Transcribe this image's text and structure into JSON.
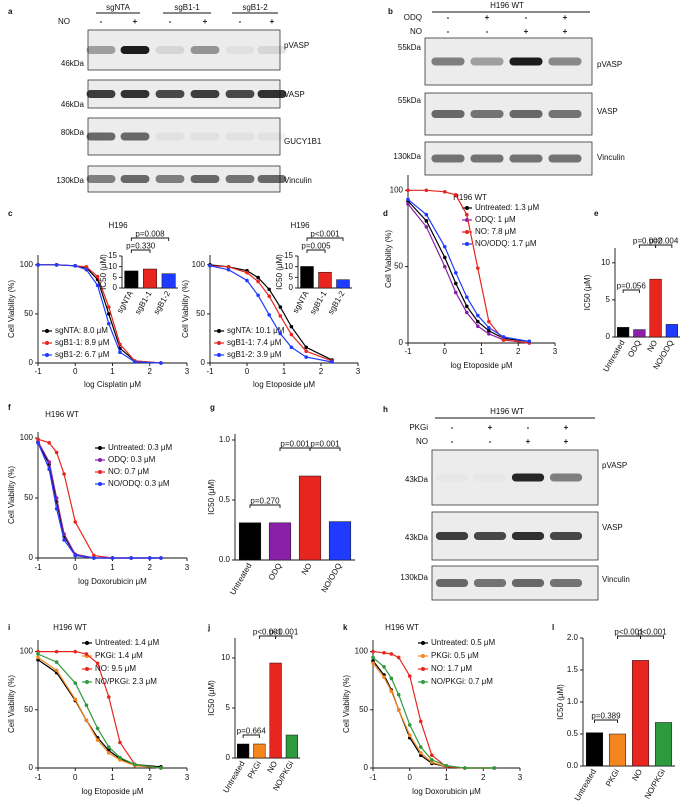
{
  "blots": [
    {
      "label": "a",
      "groups": [
        "sgNTA",
        "sgB1-1",
        "sgB1-2"
      ],
      "treatments": [
        {
          "name": "NO",
          "signs": [
            "-",
            "+",
            "-",
            "+",
            "-",
            "+"
          ]
        }
      ],
      "rows": [
        {
          "name": "pVASP",
          "marker": "46kDa"
        },
        {
          "name": "VASP",
          "marker": "46kDa"
        },
        {
          "name": "GUCY1B1",
          "marker": "80kDa"
        },
        {
          "name": "Vinculin",
          "marker": "130kDa"
        }
      ]
    },
    {
      "label": "b",
      "header": "H196 WT",
      "treatments": [
        {
          "name": "ODQ",
          "signs": [
            "-",
            "+",
            "-",
            "+"
          ]
        },
        {
          "name": "NO",
          "signs": [
            "-",
            "-",
            "+",
            "+"
          ]
        }
      ],
      "rows": [
        {
          "name": "pVASP",
          "marker": "55kDa"
        },
        {
          "name": "VASP",
          "marker": "55kDa"
        },
        {
          "name": "Vinculin",
          "marker": "130kDa"
        }
      ]
    },
    {
      "label": "h",
      "header": "H196 WT",
      "treatments": [
        {
          "name": "PKGi",
          "signs": [
            "-",
            "+",
            "-",
            "+"
          ]
        },
        {
          "name": "NO",
          "signs": [
            "-",
            "-",
            "+",
            "+"
          ]
        }
      ],
      "rows": [
        {
          "name": "pVASP",
          "marker": "43kDa"
        },
        {
          "name": "VASP",
          "marker": "43kDa"
        },
        {
          "name": "Vinculin",
          "marker": "130kDa"
        }
      ]
    }
  ],
  "chart_data": [
    {
      "type": "line",
      "label": "c",
      "title": "H196",
      "xlabel": "log Cisplatin μM",
      "ylabel": "Cell Viability (%)",
      "xlim": [
        -1,
        3
      ],
      "xticks": [
        -1,
        0,
        1,
        2,
        3
      ],
      "ylim": [
        0,
        110
      ],
      "yticks": [
        0,
        50,
        100
      ],
      "series": [
        {
          "name": "sgNTA: 8.0 μM",
          "color": "#000000",
          "x": [
            -1,
            -0.5,
            0,
            0.3,
            0.6,
            0.9,
            1.2,
            1.6,
            2.3
          ],
          "values": [
            100,
            100,
            99,
            97,
            85,
            50,
            15,
            2,
            0
          ]
        },
        {
          "name": "sgB1-1: 8.9 μM",
          "color": "#e8251f",
          "x": [
            -1,
            -0.5,
            0,
            0.3,
            0.6,
            0.9,
            1.2,
            1.6,
            2.3
          ],
          "values": [
            100,
            100,
            99,
            98,
            88,
            57,
            19,
            2,
            0
          ]
        },
        {
          "name": "sgB1-2: 6.7 μM",
          "color": "#1f3bff",
          "x": [
            -1,
            -0.5,
            0,
            0.3,
            0.6,
            0.9,
            1.2,
            1.6,
            2.3
          ],
          "values": [
            100,
            100,
            99,
            95,
            79,
            40,
            11,
            1,
            0
          ]
        }
      ]
    },
    {
      "type": "bar",
      "ylabel": "IC50 (μM)",
      "categories": [
        "sgNTA",
        "sgB1-1",
        "sgB1-2"
      ],
      "values": [
        8.0,
        8.9,
        6.7
      ],
      "colors": [
        "#000000",
        "#e8251f",
        "#1f3bff"
      ],
      "ylim": [
        0,
        15
      ],
      "yticks": [
        0,
        5,
        10,
        15
      ],
      "annotations": [
        "p=0.330",
        "p=0.008"
      ]
    },
    {
      "type": "line",
      "title": "H196",
      "xlabel": "log Etoposide μM",
      "ylabel": "Cell Viability (%)",
      "xlim": [
        -1,
        3
      ],
      "xticks": [
        -1,
        0,
        1,
        2,
        3
      ],
      "ylim": [
        0,
        110
      ],
      "yticks": [
        0,
        50,
        100
      ],
      "series": [
        {
          "name": "sgNTA: 10.1 μM",
          "color": "#000000",
          "x": [
            -1,
            -0.5,
            0,
            0.3,
            0.6,
            0.9,
            1.2,
            1.6,
            2.3
          ],
          "values": [
            100,
            98,
            94,
            87,
            75,
            57,
            37,
            16,
            3
          ]
        },
        {
          "name": "sgB1-1: 7.4 μM",
          "color": "#e8251f",
          "x": [
            -1,
            -0.5,
            0,
            0.3,
            0.6,
            0.9,
            1.2,
            1.6,
            2.3
          ],
          "values": [
            99,
            98,
            92,
            83,
            68,
            48,
            29,
            12,
            2
          ]
        },
        {
          "name": "sgB1-2: 3.9 μM",
          "color": "#1f3bff",
          "x": [
            -1,
            -0.5,
            0,
            0.3,
            0.6,
            0.9,
            1.2,
            1.6,
            2.3
          ],
          "values": [
            99,
            95,
            84,
            69,
            49,
            30,
            16,
            6,
            1
          ]
        }
      ]
    },
    {
      "type": "bar",
      "ylabel": "IC50 (μM)",
      "categories": [
        "sgNTA",
        "sgB1-1",
        "sgB1-2"
      ],
      "values": [
        10.1,
        7.4,
        3.9
      ],
      "colors": [
        "#000000",
        "#e8251f",
        "#1f3bff"
      ],
      "ylim": [
        0,
        15
      ],
      "yticks": [
        0,
        5,
        10,
        15
      ],
      "annotations": [
        "p=0.005",
        "p<0.001"
      ]
    },
    {
      "type": "line",
      "label": "d",
      "title": "H196 WT",
      "xlabel": "log Etoposide μM",
      "ylabel": "Cell Viability (%)",
      "xlim": [
        -1,
        3
      ],
      "xticks": [
        -1,
        0,
        1,
        2,
        3
      ],
      "ylim": [
        0,
        110
      ],
      "yticks": [
        0,
        50,
        100
      ],
      "series": [
        {
          "name": "Untreated: 1.3 μM",
          "color": "#000000",
          "x": [
            -1,
            -0.5,
            0,
            0.3,
            0.6,
            0.9,
            1.2,
            1.6,
            2.3
          ],
          "values": [
            93,
            80,
            56,
            39,
            24,
            14,
            8,
            3,
            1
          ]
        },
        {
          "name": "ODQ: 1 μM",
          "color": "#8a1fa8",
          "x": [
            -1,
            -0.5,
            0,
            0.3,
            0.6,
            0.9,
            1.2,
            1.6,
            2.3
          ],
          "values": [
            91,
            76,
            50,
            33,
            20,
            11,
            6,
            2,
            0
          ]
        },
        {
          "name": "NO: 7.8 μM",
          "color": "#e8251f",
          "x": [
            -1,
            -0.5,
            0,
            0.3,
            0.6,
            0.9,
            1.2,
            1.6,
            2.3
          ],
          "values": [
            100,
            100,
            99,
            97,
            84,
            49,
            14,
            2,
            0
          ]
        },
        {
          "name": "NO/ODQ: 1.7 μM",
          "color": "#1f3bff",
          "x": [
            -1,
            -0.5,
            0,
            0.3,
            0.6,
            0.9,
            1.2,
            1.6,
            2.3
          ],
          "values": [
            94,
            84,
            63,
            46,
            30,
            18,
            10,
            4,
            1
          ]
        }
      ]
    },
    {
      "type": "bar",
      "label": "e",
      "ylabel": "IC50 (μM)",
      "categories": [
        "Untreated",
        "ODQ",
        "NO",
        "NO/ODQ"
      ],
      "values": [
        1.3,
        1.0,
        7.8,
        1.7
      ],
      "colors": [
        "#000000",
        "#8a1fa8",
        "#e8251f",
        "#1f3bff"
      ],
      "ylim": [
        0,
        12
      ],
      "yticks": [
        0,
        5,
        10
      ],
      "annotations": [
        "p=0.056",
        "p=0.002",
        "p=0.004"
      ]
    },
    {
      "type": "line",
      "label": "f",
      "title": "H196 WT",
      "xlabel": "log Doxorubicin μM",
      "ylabel": "Cell Viability (%)",
      "xlim": [
        -1,
        3
      ],
      "xticks": [
        -1,
        0,
        1,
        2,
        3
      ],
      "ylim": [
        0,
        105
      ],
      "yticks": [
        0,
        50,
        100
      ],
      "series": [
        {
          "name": "Untreated: 0.3 μM",
          "color": "#000000",
          "x": [
            -1,
            -0.7,
            -0.5,
            -0.3,
            0,
            0.5,
            1,
            1.5,
            2,
            2.3
          ],
          "values": [
            96,
            78,
            47,
            18,
            3,
            0,
            0,
            0,
            0,
            0
          ]
        },
        {
          "name": "ODQ: 0.3 μM",
          "color": "#8a1fa8",
          "x": [
            -1,
            -0.7,
            -0.5,
            -0.3,
            0,
            0.5,
            1,
            1.5,
            2,
            2.3
          ],
          "values": [
            97,
            80,
            50,
            20,
            3,
            0,
            0,
            0,
            0,
            0
          ]
        },
        {
          "name": "NO: 0.7 μM",
          "color": "#e8251f",
          "x": [
            -1,
            -0.7,
            -0.5,
            -0.3,
            0,
            0.5,
            1,
            1.5,
            2,
            2.3
          ],
          "values": [
            99,
            96,
            88,
            70,
            30,
            2,
            0,
            0,
            0,
            0
          ]
        },
        {
          "name": "NO/ODQ: 0.3 μM",
          "color": "#1f3bff",
          "x": [
            -1,
            -0.7,
            -0.5,
            -0.3,
            0,
            0.5,
            1,
            1.5,
            2,
            2.3
          ],
          "values": [
            96,
            74,
            41,
            15,
            2,
            0,
            0,
            0,
            0,
            0
          ]
        }
      ]
    },
    {
      "type": "bar",
      "label": "g",
      "ylabel": "IC50 (μM)",
      "categories": [
        "Untreated",
        "ODQ",
        "NO",
        "NO/ODQ"
      ],
      "values": [
        0.31,
        0.31,
        0.7,
        0.32
      ],
      "colors": [
        "#000000",
        "#8a1fa8",
        "#e8251f",
        "#1f3bff"
      ],
      "ylim": [
        0,
        1.05
      ],
      "yticks": [
        {
          "value": 0,
          "label": "0.0"
        },
        0.5,
        {
          "value": 1,
          "label": "1.0"
        }
      ],
      "annotations": [
        "p=0.270",
        "p=0.001",
        "p=0.001"
      ]
    },
    {
      "type": "line",
      "label": "i",
      "title": "H196 WT",
      "xlabel": "log Etoposide μM",
      "ylabel": "Cell Viability (%)",
      "xlim": [
        -1,
        3
      ],
      "xticks": [
        -1,
        0,
        1,
        2,
        3
      ],
      "ylim": [
        0,
        110
      ],
      "yticks": [
        0,
        50,
        100
      ],
      "series": [
        {
          "name": "Untreated: 1.4 μM",
          "color": "#000000",
          "x": [
            -1,
            -0.5,
            0,
            0.3,
            0.6,
            0.9,
            1.2,
            1.6,
            2.3
          ],
          "values": [
            93,
            82,
            58,
            41,
            26,
            15,
            8,
            3,
            1
          ]
        },
        {
          "name": "PKGi: 1.4 μM",
          "color": "#f5861f",
          "x": [
            -1,
            -0.5,
            0,
            0.3,
            0.6,
            0.9,
            1.2,
            1.6,
            2.3
          ],
          "values": [
            95,
            84,
            59,
            41,
            24,
            13,
            7,
            2,
            0
          ]
        },
        {
          "name": "NO: 9.5 μM",
          "color": "#e8251f",
          "x": [
            -1,
            -0.5,
            0,
            0.3,
            0.6,
            0.9,
            1.2,
            1.6,
            2.3
          ],
          "values": [
            100,
            100,
            100,
            98,
            90,
            61,
            22,
            3,
            0
          ]
        },
        {
          "name": "NO/PKGi: 2.3 μM",
          "color": "#2e9a3e",
          "x": [
            -1,
            -0.5,
            0,
            0.3,
            0.6,
            0.9,
            1.2,
            1.6,
            2.3
          ],
          "values": [
            98,
            91,
            73,
            54,
            34,
            18,
            9,
            3,
            0
          ]
        }
      ]
    },
    {
      "type": "bar",
      "label": "j",
      "ylabel": "IC50 (μM)",
      "categories": [
        "Untreated",
        "PKGi",
        "NO",
        "NO/PKGi"
      ],
      "values": [
        1.4,
        1.4,
        9.5,
        2.3
      ],
      "colors": [
        "#000000",
        "#f5861f",
        "#e8251f",
        "#2e9a3e"
      ],
      "ylim": [
        0,
        12
      ],
      "yticks": [
        0,
        5,
        10
      ],
      "annotations": [
        "p=0.664",
        "p<0.001",
        "p<0.001"
      ]
    },
    {
      "type": "line",
      "label": "k",
      "title": "H196 WT",
      "xlabel": "log Doxorubicin μM",
      "ylabel": "Cell Viability (%)",
      "xlim": [
        -1,
        3
      ],
      "xticks": [
        -1,
        0,
        1,
        2,
        3
      ],
      "ylim": [
        0,
        110
      ],
      "yticks": [
        0,
        50,
        100
      ],
      "series": [
        {
          "name": "Untreated: 0.5 μM",
          "color": "#000000",
          "x": [
            -1,
            -0.7,
            -0.5,
            -0.3,
            0,
            0.3,
            0.6,
            1,
            1.5,
            2.3
          ],
          "values": [
            92,
            80,
            67,
            50,
            26,
            11,
            4,
            1,
            0,
            0
          ]
        },
        {
          "name": "PKGi: 0.5 μM",
          "color": "#f5861f",
          "x": [
            -1,
            -0.7,
            -0.5,
            -0.3,
            0,
            0.3,
            0.6,
            1,
            1.5,
            2.3
          ],
          "values": [
            90,
            78,
            66,
            50,
            28,
            13,
            5,
            1,
            0,
            0
          ]
        },
        {
          "name": "NO: 1.7 μM",
          "color": "#e8251f",
          "x": [
            -1,
            -0.7,
            -0.5,
            -0.3,
            0,
            0.3,
            0.6,
            1,
            1.5,
            2.3
          ],
          "values": [
            100,
            99,
            98,
            95,
            79,
            40,
            11,
            1,
            0,
            0
          ]
        },
        {
          "name": "NO/PKGi: 0.7 μM",
          "color": "#2e9a3e",
          "x": [
            -1,
            -0.7,
            -0.5,
            -0.3,
            0,
            0.3,
            0.6,
            1,
            1.5,
            2.3
          ],
          "values": [
            95,
            87,
            77,
            63,
            37,
            18,
            7,
            2,
            0,
            0
          ]
        }
      ]
    },
    {
      "type": "bar",
      "label": "l",
      "ylabel": "IC50 (μM)",
      "categories": [
        "Untreated",
        "PKGi",
        "NO",
        "NO/PKGi"
      ],
      "values": [
        0.52,
        0.5,
        1.65,
        0.68
      ],
      "colors": [
        "#000000",
        "#f5861f",
        "#e8251f",
        "#2e9a3e"
      ],
      "ylim": [
        0,
        2
      ],
      "yticks": [
        {
          "value": 0,
          "label": "0.0"
        },
        0.5,
        {
          "value": 1,
          "label": "1.0"
        },
        1.5,
        {
          "value": 2,
          "label": "2.0"
        }
      ],
      "annotations": [
        "p=0.389",
        "p<0.001",
        "p<0.001"
      ]
    }
  ]
}
